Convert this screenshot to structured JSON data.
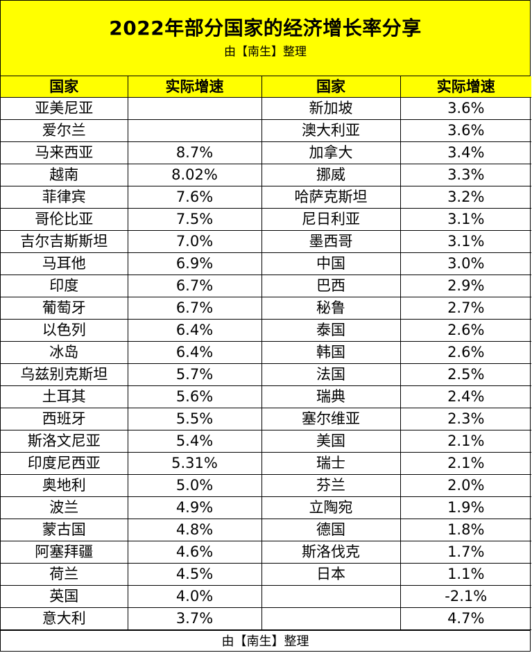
{
  "title": "2022年部分国家的经济增长率分享",
  "subtitle": "由【南生】整理",
  "headers": [
    "国家",
    "实际增速",
    "国家",
    "实际增速"
  ],
  "rows": [
    [
      "亚美尼亚",
      "",
      "新加坡",
      "3.6%"
    ],
    [
      "爱尔兰",
      "",
      "澳大利亚",
      "3.6%"
    ],
    [
      "马来西亚",
      "8.7%",
      "加拿大",
      "3.4%"
    ],
    [
      "越南",
      "8.02%",
      "挪威",
      "3.3%"
    ],
    [
      "菲律宾",
      "7.6%",
      "哈萨克斯坦",
      "3.2%"
    ],
    [
      "哥伦比亚",
      "7.5%",
      "尼日利亚",
      "3.1%"
    ],
    [
      "吉尔吉斯斯坦",
      "7.0%",
      "墨西哥",
      "3.1%"
    ],
    [
      "马耳他",
      "6.9%",
      "中国",
      "3.0%"
    ],
    [
      "印度",
      "6.7%",
      "巴西",
      "2.9%"
    ],
    [
      "葡萄牙",
      "6.7%",
      "秘鲁",
      "2.7%"
    ],
    [
      "以色列",
      "6.4%",
      "泰国",
      "2.6%"
    ],
    [
      "冰岛",
      "6.4%",
      "韩国",
      "2.6%"
    ],
    [
      "乌兹别克斯坦",
      "5.7%",
      "法国",
      "2.5%"
    ],
    [
      "土耳其",
      "5.6%",
      "瑞典",
      "2.4%"
    ],
    [
      "西班牙",
      "5.5%",
      "塞尔维亚",
      "2.3%"
    ],
    [
      "斯洛文尼亚",
      "5.4%",
      "美国",
      "2.1%"
    ],
    [
      "印度尼西亚",
      "5.31%",
      "瑞士",
      "2.1%"
    ],
    [
      "奥地利",
      "5.0%",
      "芬兰",
      "2.0%"
    ],
    [
      "波兰",
      "4.9%",
      "立陶宛",
      "1.9%"
    ],
    [
      "蒙古国",
      "4.8%",
      "德国",
      "1.8%"
    ],
    [
      "阿塞拜疆",
      "4.6%",
      "斯洛伐克",
      "1.7%"
    ],
    [
      "荷兰",
      "4.5%",
      "日本",
      "1.1%"
    ],
    [
      "英国",
      "4.0%",
      "",
      "-2.1%"
    ],
    [
      "意大利",
      "3.7%",
      "",
      "4.7%"
    ]
  ],
  "footer": "由【南生】整理",
  "colors": {
    "header_bg": "#ffff00",
    "border": "#000000"
  }
}
